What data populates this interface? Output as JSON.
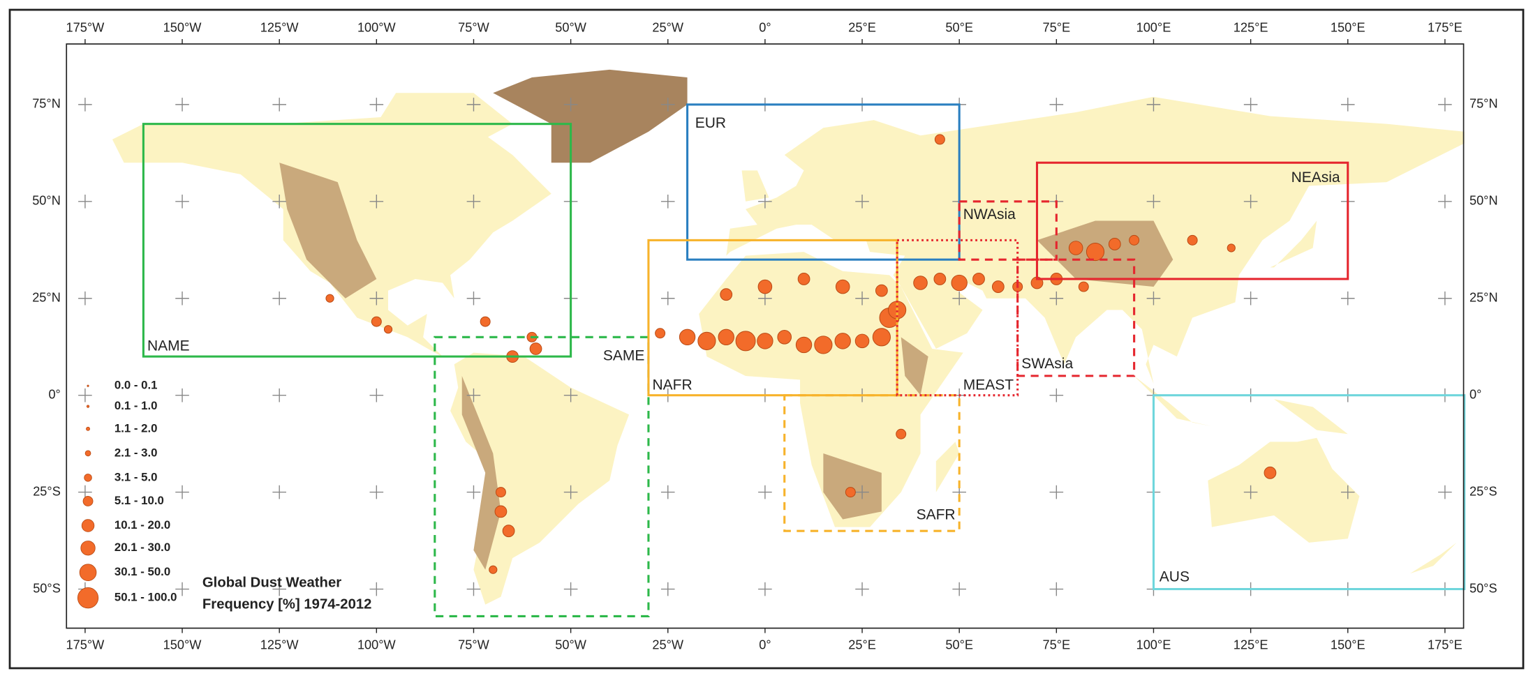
{
  "map": {
    "lon_labels": [
      "175°W",
      "150°W",
      "125°W",
      "100°W",
      "75°W",
      "50°W",
      "25°W",
      "0°",
      "25°E",
      "50°E",
      "75°E",
      "100°E",
      "125°E",
      "150°E",
      "175°E"
    ],
    "lat_labels": [
      "75°N",
      "50°N",
      "25°N",
      "0°",
      "25°S",
      "50°S"
    ],
    "regions": [
      {
        "label": "NAME"
      },
      {
        "label": "SAME"
      },
      {
        "label": "EUR"
      },
      {
        "label": "NAFR"
      },
      {
        "label": "SAFR"
      },
      {
        "label": "MEAST"
      },
      {
        "label": "NWAsia"
      },
      {
        "label": "SWAsia"
      },
      {
        "label": "NEAsia"
      },
      {
        "label": "AUS"
      }
    ],
    "legend": {
      "title": [
        "Global Dust Weather",
        "Frequency [%] 1974-2012"
      ],
      "items": [
        "0.0 - 0.1",
        "0.1 - 1.0",
        "1.1 - 2.0",
        "2.1 - 3.0",
        "3.1 - 5.0",
        "5.1 - 10.0",
        "10.1 - 20.0",
        "20.1 - 30.0",
        "30.1 - 50.0",
        "50.1 - 100.0"
      ]
    }
  }
}
